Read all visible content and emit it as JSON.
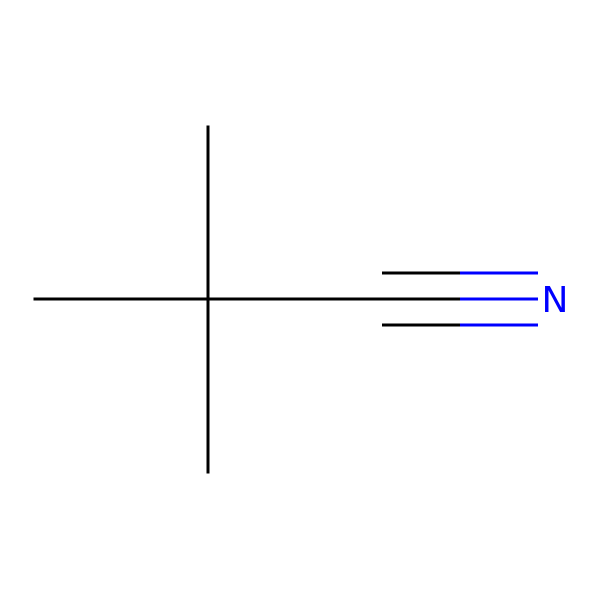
{
  "molecule": {
    "atoms": [
      {
        "id": "c_methyl_top",
        "element": "C",
        "label": ""
      },
      {
        "id": "c_methyl_left",
        "element": "C",
        "label": ""
      },
      {
        "id": "c_methyl_bottom",
        "element": "C",
        "label": ""
      },
      {
        "id": "c_quaternary",
        "element": "C",
        "label": ""
      },
      {
        "id": "c_nitrile",
        "element": "C",
        "label": ""
      },
      {
        "id": "n_nitrile",
        "element": "N",
        "label": "N"
      }
    ],
    "bonds": [
      {
        "from": "c_methyl_top",
        "to": "c_quaternary",
        "order": 1
      },
      {
        "from": "c_methyl_left",
        "to": "c_quaternary",
        "order": 1
      },
      {
        "from": "c_methyl_bottom",
        "to": "c_quaternary",
        "order": 1
      },
      {
        "from": "c_quaternary",
        "to": "c_nitrile",
        "order": 1
      },
      {
        "from": "c_nitrile",
        "to": "n_nitrile",
        "order": 3
      }
    ],
    "colors": {
      "carbon": "#000000",
      "nitrogen": "#0000ff",
      "background": "#ffffff"
    }
  }
}
